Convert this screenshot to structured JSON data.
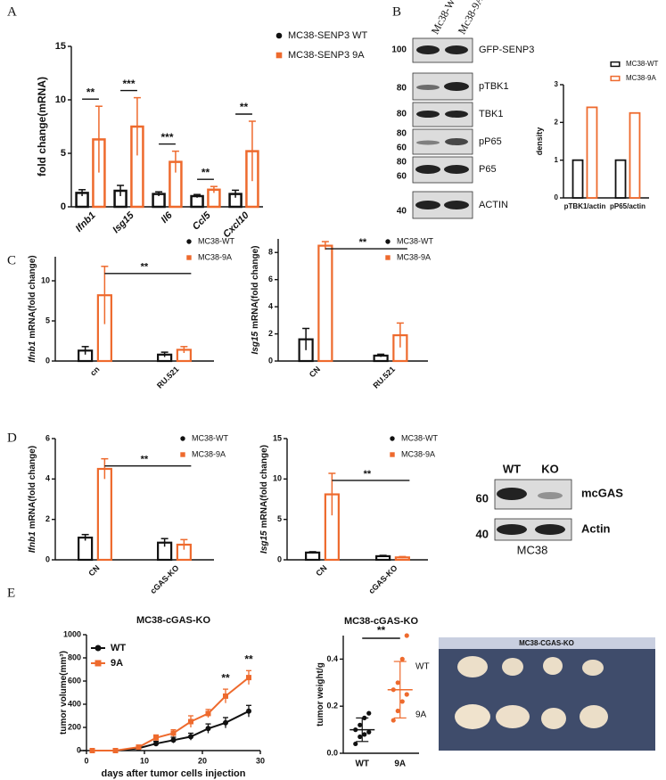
{
  "panels": [
    "A",
    "B",
    "C",
    "D",
    "E"
  ],
  "chart_data": [
    {
      "type": "bar",
      "categories": [
        "Ifnb1",
        "Isg15",
        "Il6",
        "Ccl5",
        "Cxcl10"
      ],
      "series": [
        {
          "name": "MC38-SENP3 WT",
          "color": "#111111",
          "marker": "circle",
          "values": [
            1.3,
            1.5,
            1.2,
            1.0,
            1.2
          ],
          "errors": [
            0.3,
            0.5,
            0.2,
            0.15,
            0.35
          ]
        },
        {
          "name": "MC38-SENP3 9A",
          "color": "#ee6a2d",
          "marker": "square",
          "values": [
            6.3,
            7.5,
            4.2,
            1.6,
            5.2
          ],
          "errors": [
            3.1,
            2.7,
            1.0,
            0.3,
            2.8
          ]
        }
      ],
      "ylim": [
        0,
        15
      ],
      "yticks": [
        0,
        5,
        10,
        15
      ],
      "ylabel": "fold change(mRNA)",
      "significance": [
        "**",
        "***",
        "***",
        "**",
        "**"
      ]
    },
    {
      "type": "bar",
      "categories": [
        "pTBK1/actin",
        "pP65/actin"
      ],
      "series": [
        {
          "name": "MC38-WT",
          "color": "#111111",
          "marker": "box",
          "values": [
            1,
            1
          ]
        },
        {
          "name": "MC38-9A",
          "color": "#ee6a2d",
          "marker": "box",
          "values": [
            2.4,
            2.25
          ]
        }
      ],
      "ylim": [
        0,
        3
      ],
      "yticks": [
        0,
        1,
        2,
        3
      ],
      "ylabel": "density"
    },
    {
      "type": "bar",
      "categories": [
        "cn",
        "RU.521"
      ],
      "series": [
        {
          "name": "MC38-WT",
          "color": "#111111",
          "marker": "circle",
          "values": [
            1.3,
            0.8
          ],
          "errors": [
            0.5,
            0.3
          ]
        },
        {
          "name": "MC38-9A",
          "color": "#ee6a2d",
          "marker": "square",
          "values": [
            8.2,
            1.4
          ],
          "errors": [
            3.6,
            0.4
          ]
        }
      ],
      "ylim": [
        0,
        13
      ],
      "yticks": [
        0,
        5,
        10
      ],
      "ylabel": {
        "gene": "Ifnb1",
        "text": "mRNA(fold change)"
      },
      "significance": "**"
    },
    {
      "type": "bar",
      "categories": [
        "CN",
        "RU.521"
      ],
      "series": [
        {
          "name": "MC38-WT",
          "color": "#111111",
          "marker": "circle",
          "values": [
            1.6,
            0.4
          ],
          "errors": [
            0.8,
            0.1
          ]
        },
        {
          "name": "MC38-9A",
          "color": "#ee6a2d",
          "marker": "square",
          "values": [
            8.5,
            1.9
          ],
          "errors": [
            0.3,
            0.9
          ]
        }
      ],
      "ylim": [
        0,
        9
      ],
      "yticks": [
        0,
        2,
        4,
        6,
        8
      ],
      "ylabel": {
        "gene": "Isg15",
        "text": "mRNA(fold change)"
      },
      "significance": "**"
    },
    {
      "type": "bar",
      "categories": [
        "CN",
        "cGAS-KO"
      ],
      "series": [
        {
          "name": "MC38-WT",
          "color": "#111111",
          "marker": "circle",
          "values": [
            1.1,
            0.85
          ],
          "errors": [
            0.15,
            0.2
          ]
        },
        {
          "name": "MC38-9A",
          "color": "#ee6a2d",
          "marker": "square",
          "values": [
            4.5,
            0.75
          ],
          "errors": [
            0.5,
            0.25
          ]
        }
      ],
      "ylim": [
        0,
        6
      ],
      "yticks": [
        0,
        2,
        4,
        6
      ],
      "ylabel": {
        "gene": "Ifnb1",
        "text": "mRNA(fold change)"
      },
      "significance": "**"
    },
    {
      "type": "bar",
      "categories": [
        "CN",
        "cGAS-KO"
      ],
      "series": [
        {
          "name": "MC38-WT",
          "color": "#111111",
          "marker": "circle",
          "values": [
            0.9,
            0.45
          ],
          "errors": [
            0.1,
            0.1
          ]
        },
        {
          "name": "MC38-9A",
          "color": "#ee6a2d",
          "marker": "square",
          "values": [
            8.1,
            0.3
          ],
          "errors": [
            2.6,
            0.1
          ]
        }
      ],
      "ylim": [
        0,
        15
      ],
      "yticks": [
        0,
        5,
        10,
        15
      ],
      "ylabel": {
        "gene": "Isg15",
        "text": "mRNA(fold change)"
      },
      "significance": "**"
    },
    {
      "type": "line",
      "title": "MC38-cGAS-KO",
      "x": [
        1,
        5,
        9,
        12,
        15,
        18,
        21,
        24,
        28
      ],
      "series": [
        {
          "name": "WT",
          "color": "#111111",
          "marker": "circle",
          "values": [
            0,
            0,
            20,
            60,
            90,
            120,
            190,
            240,
            340
          ],
          "errors": [
            0,
            0,
            10,
            20,
            25,
            30,
            40,
            45,
            50
          ]
        },
        {
          "name": "9A",
          "color": "#ee6a2d",
          "marker": "square",
          "values": [
            0,
            0,
            30,
            110,
            150,
            250,
            320,
            470,
            630
          ],
          "errors": [
            0,
            0,
            10,
            25,
            30,
            50,
            35,
            60,
            60
          ]
        }
      ],
      "xlim": [
        0,
        30
      ],
      "xticks": [
        0,
        10,
        20,
        30
      ],
      "ylim": [
        0,
        1000
      ],
      "yticks": [
        0,
        200,
        400,
        600,
        800,
        1000
      ],
      "xlabel": "days after tumor cells injection",
      "ylabel": "tumor volume(mm³)",
      "annotations": [
        {
          "x": 24,
          "text": "**"
        },
        {
          "x": 28,
          "text": "**"
        }
      ]
    },
    {
      "type": "dot",
      "title": "MC38-cGAS-KO",
      "categories": [
        "WT",
        "9A"
      ],
      "colors": [
        "#111111",
        "#ee6a2d"
      ],
      "points": [
        [
          0.04,
          0.07,
          0.08,
          0.09,
          0.1,
          0.12,
          0.15,
          0.17
        ],
        [
          0.14,
          0.18,
          0.22,
          0.25,
          0.27,
          0.3,
          0.4,
          0.5
        ]
      ],
      "means": [
        0.1,
        0.27
      ],
      "sd": [
        0.05,
        0.12
      ],
      "ylim": [
        0,
        0.5
      ],
      "yticks": [
        {
          "value": 0,
          "label": "0.0"
        },
        0.2,
        0.4
      ],
      "ylabel": "tumor weight/g",
      "significance": "**"
    }
  ],
  "blot_b": {
    "lanes": [
      "Mc38-WT",
      "Mc38-9A"
    ],
    "rows": [
      {
        "label": "GFP-SENP3",
        "markers": [
          "100"
        ]
      },
      {
        "label": "pTBK1",
        "markers": [
          "80"
        ]
      },
      {
        "label": "TBK1",
        "markers": [
          "80"
        ]
      },
      {
        "label": "pP65",
        "markers": [
          "80",
          "60"
        ]
      },
      {
        "label": "P65",
        "markers": [
          "80",
          "60"
        ]
      },
      {
        "label": "ACTIN",
        "markers": [
          "40"
        ]
      }
    ]
  },
  "blot_d": {
    "lanes": [
      "WT",
      "KO"
    ],
    "rows": [
      {
        "label": "mcGAS",
        "marker": "60"
      },
      {
        "label": "Actin",
        "marker": "40"
      }
    ],
    "caption": "MC38"
  },
  "photo": {
    "title": "MC38-CGAS-KO",
    "rows": [
      "WT",
      "9A"
    ]
  }
}
